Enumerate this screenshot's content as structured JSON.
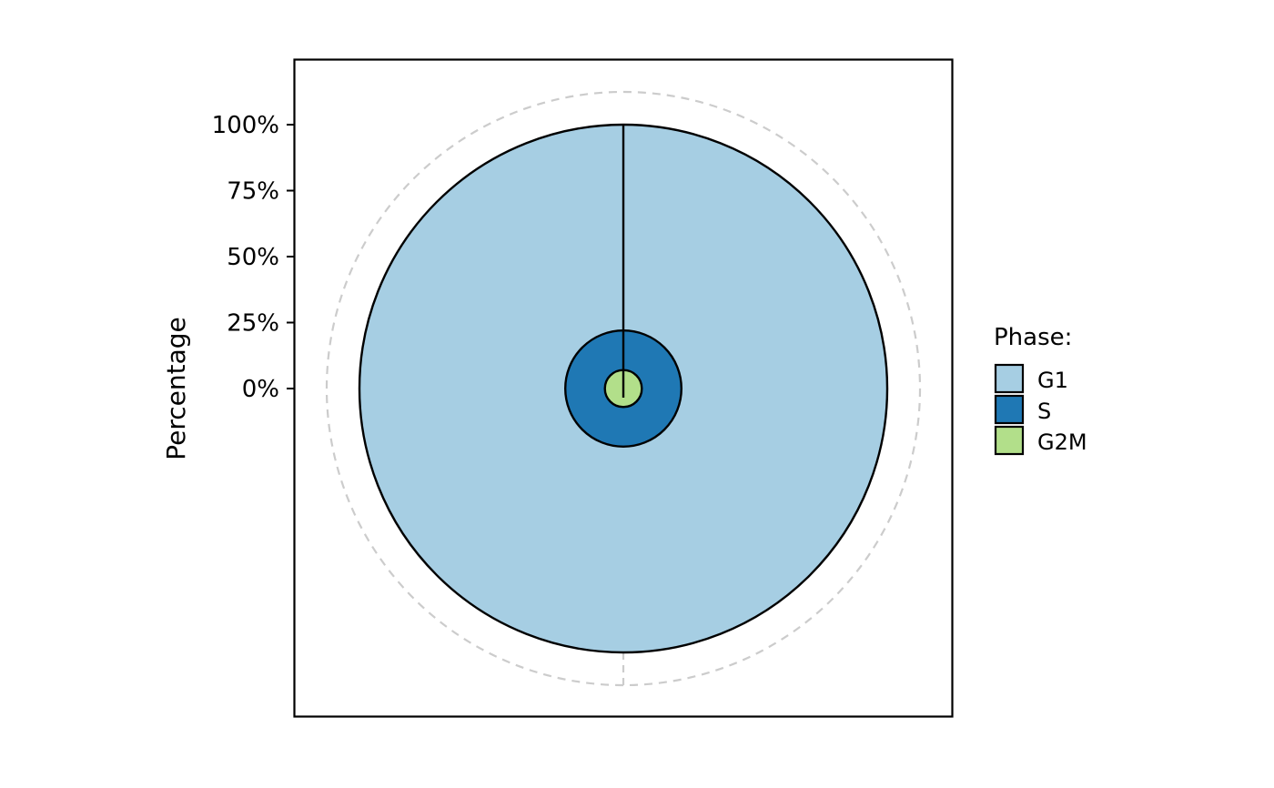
{
  "chart_data": {
    "type": "pie",
    "subtype": "concentric-radial-bar",
    "title": "",
    "ylabel": "Percentage",
    "xlabel": "",
    "ylim": [
      0,
      100
    ],
    "y_ticks": [
      "0%",
      "25%",
      "50%",
      "75%",
      "100%"
    ],
    "y_tick_values": [
      0,
      25,
      50,
      75,
      100
    ],
    "grid": true,
    "legend": {
      "title": "Phase:",
      "position": "right"
    },
    "series": [
      {
        "name": "G1",
        "value": 100,
        "color": "#A6CEE3"
      },
      {
        "name": "S",
        "value": 22,
        "color": "#1F78B4"
      },
      {
        "name": "G2M",
        "value": 7,
        "color": "#B2DF8A"
      }
    ]
  }
}
